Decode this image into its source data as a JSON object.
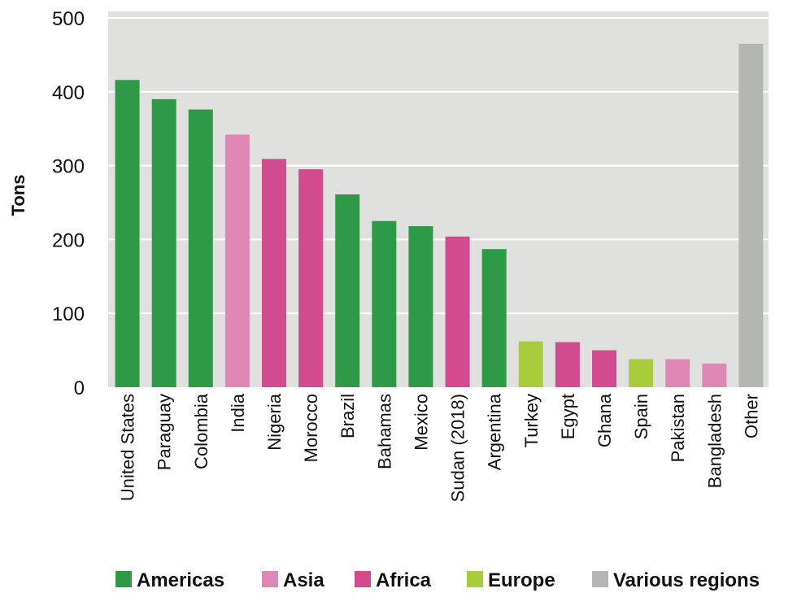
{
  "chart_data": {
    "type": "bar",
    "title": "",
    "xlabel": "",
    "ylabel": "Tons",
    "ylim": [
      0,
      500
    ],
    "yticks": [
      0,
      100,
      200,
      300,
      400,
      500
    ],
    "grid": true,
    "legend_position": "bottom",
    "categories": [
      "United States",
      "Paraguay",
      "Colombia",
      "India",
      "Nigeria",
      "Morocco",
      "Brazil",
      "Bahamas",
      "Mexico",
      "Sudan (2018)",
      "Argentina",
      "Turkey",
      "Egypt",
      "Ghana",
      "Spain",
      "Pakistan",
      "Bangladesh",
      "Other"
    ],
    "values": [
      416,
      390,
      376,
      342,
      309,
      295,
      261,
      225,
      218,
      204,
      187,
      62,
      61,
      50,
      38,
      38,
      32,
      465
    ],
    "regions": [
      "Americas",
      "Americas",
      "Americas",
      "Asia",
      "Africa",
      "Africa",
      "Americas",
      "Americas",
      "Americas",
      "Africa",
      "Americas",
      "Europe",
      "Africa",
      "Africa",
      "Europe",
      "Asia",
      "Asia",
      "Various regions"
    ],
    "legend": [
      {
        "label": "Americas",
        "color": "#2e9a47"
      },
      {
        "label": "Asia",
        "color": "#e088b5"
      },
      {
        "label": "Africa",
        "color": "#d24b8e"
      },
      {
        "label": "Europe",
        "color": "#a8cc3c"
      },
      {
        "label": "Various regions",
        "color": "#b4b6b3"
      }
    ],
    "plot_background": "#e0e1df"
  }
}
